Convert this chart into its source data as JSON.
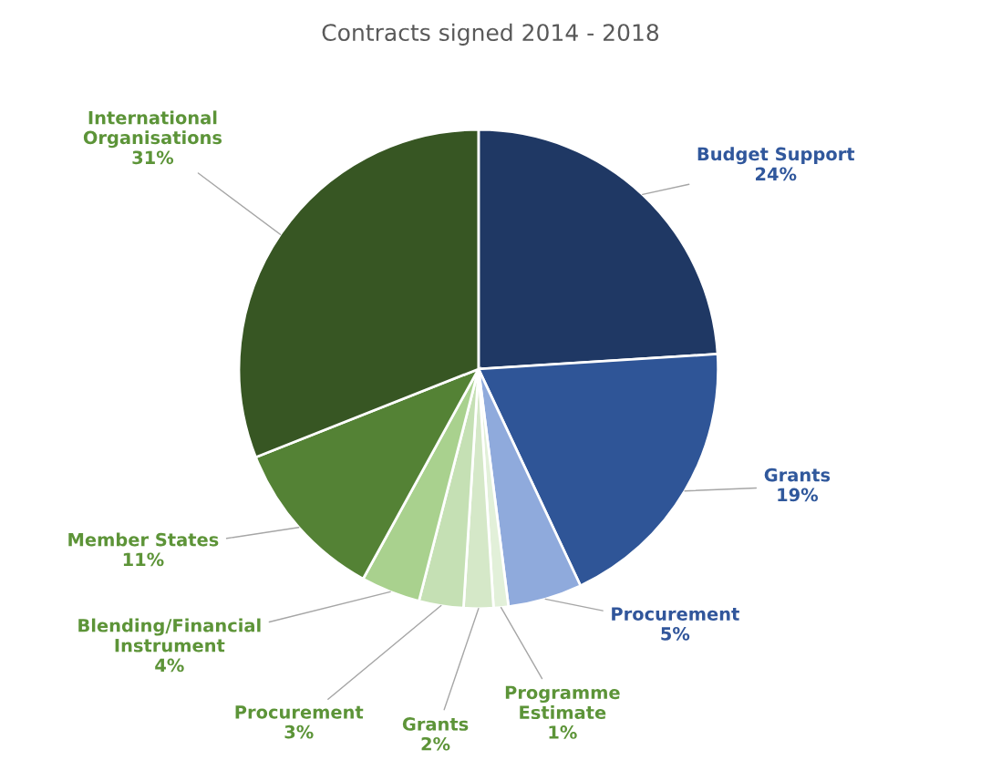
{
  "chart_data": {
    "type": "pie",
    "title": "Contracts signed 2014 - 2018",
    "categories": [
      "Budget Support",
      "Grants",
      "Procurement",
      "Programme\nEstimate",
      "Grants",
      "Procurement",
      "Blending/Financial\nInstrument",
      "Member States",
      "International\nOrganisations"
    ],
    "values": [
      24,
      19,
      5,
      1,
      2,
      3,
      4,
      11,
      31
    ],
    "value_labels": [
      "24%",
      "19%",
      "5%",
      "1%",
      "2%",
      "3%",
      "4%",
      "11%",
      "31%"
    ],
    "colors": [
      "#1f3864",
      "#2f5597",
      "#8faadc",
      "#e2f0d9",
      "#d5e8c8",
      "#c5e0b4",
      "#a9d18e",
      "#548235",
      "#375623"
    ],
    "legend": false
  }
}
